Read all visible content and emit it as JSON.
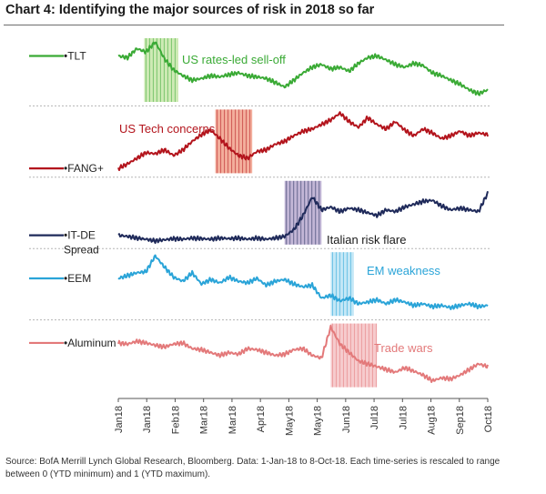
{
  "title": "Chart 4: Identifying the major sources of risk in 2018 so far",
  "source": "Source: BofA Merrill Lynch Global Research, Bloomberg. Data: 1-Jan-18 to 8-Oct-18. Each time-series is rescaled to range between 0 (YTD minimum) and 1 (YTD maximum).",
  "chart_data": {
    "type": "line",
    "title": "Chart 4: Identifying the major sources of risk in 2018 so far",
    "x_tick_labels": [
      "Jan18",
      "Jan18",
      "Feb18",
      "Mar18",
      "Mar18",
      "Apr18",
      "May18",
      "May18",
      "Jun18",
      "Jul18",
      "Jul18",
      "Aug18",
      "Sep18",
      "Oct18"
    ],
    "x_range_weeks": [
      0,
      40
    ],
    "y_range_each_series": [
      0,
      1
    ],
    "grid": "dotted horizontal separators between series",
    "legend": "series labels on left",
    "series": [
      {
        "name": "TLT",
        "color": "#3aaa35",
        "values": [
          0.75,
          0.72,
          0.88,
          0.82,
          1.0,
          0.7,
          0.5,
          0.4,
          0.32,
          0.35,
          0.4,
          0.38,
          0.42,
          0.45,
          0.4,
          0.38,
          0.35,
          0.28,
          0.2,
          0.32,
          0.45,
          0.55,
          0.6,
          0.52,
          0.55,
          0.48,
          0.62,
          0.72,
          0.75,
          0.68,
          0.6,
          0.55,
          0.62,
          0.58,
          0.45,
          0.4,
          0.32,
          0.25,
          0.15,
          0.08,
          0.15
        ]
      },
      {
        "name": "FANG+",
        "color": "#b3141c",
        "values": [
          0.02,
          0.1,
          0.2,
          0.3,
          0.28,
          0.35,
          0.25,
          0.35,
          0.5,
          0.62,
          0.7,
          0.55,
          0.38,
          0.25,
          0.2,
          0.32,
          0.35,
          0.45,
          0.5,
          0.6,
          0.68,
          0.72,
          0.8,
          0.88,
          1.0,
          0.85,
          0.75,
          0.92,
          0.8,
          0.72,
          0.85,
          0.7,
          0.6,
          0.72,
          0.65,
          0.55,
          0.6,
          0.68,
          0.6,
          0.65,
          0.62
        ]
      },
      {
        "name": "IT-DE Spread",
        "color": "#1f2a5a",
        "values": [
          0.1,
          0.08,
          0.05,
          0.03,
          0.0,
          0.02,
          0.04,
          0.03,
          0.05,
          0.04,
          0.03,
          0.05,
          0.04,
          0.05,
          0.03,
          0.05,
          0.03,
          0.05,
          0.08,
          0.2,
          0.45,
          0.78,
          0.55,
          0.6,
          0.52,
          0.58,
          0.55,
          0.5,
          0.45,
          0.55,
          0.52,
          0.6,
          0.65,
          0.7,
          0.72,
          0.62,
          0.55,
          0.58,
          0.55,
          0.52,
          0.85
        ]
      },
      {
        "name": "EEM",
        "color": "#2aa4d8",
        "values": [
          0.6,
          0.65,
          0.7,
          0.72,
          1.0,
          0.8,
          0.62,
          0.55,
          0.7,
          0.5,
          0.58,
          0.52,
          0.62,
          0.55,
          0.52,
          0.6,
          0.48,
          0.55,
          0.58,
          0.5,
          0.45,
          0.48,
          0.25,
          0.3,
          0.2,
          0.25,
          0.15,
          0.18,
          0.22,
          0.15,
          0.22,
          0.18,
          0.12,
          0.15,
          0.1,
          0.12,
          0.08,
          0.12,
          0.15,
          0.1,
          0.12
        ]
      },
      {
        "name": "Aluminum",
        "color": "#e3797a",
        "values": [
          0.72,
          0.7,
          0.75,
          0.72,
          0.68,
          0.65,
          0.7,
          0.72,
          0.62,
          0.6,
          0.55,
          0.5,
          0.55,
          0.52,
          0.62,
          0.6,
          0.55,
          0.5,
          0.52,
          0.6,
          0.62,
          0.5,
          0.45,
          1.0,
          0.7,
          0.55,
          0.4,
          0.35,
          0.3,
          0.25,
          0.2,
          0.28,
          0.22,
          0.15,
          0.05,
          0.1,
          0.08,
          0.15,
          0.25,
          0.35,
          0.3
        ]
      }
    ],
    "annotations": [
      {
        "label": "US rates-led sell-off",
        "series": "TLT",
        "week_range": [
          2.8,
          6.5
        ],
        "color": "#3aaa35",
        "shade": "#c6e6a8"
      },
      {
        "label": "US Tech concerns",
        "series": "FANG+",
        "week_range": [
          10.5,
          14.5
        ],
        "color": "#b3141c",
        "shade": "#f1a08b"
      },
      {
        "label": "Italian risk flare",
        "series": "IT-DE Spread",
        "week_range": [
          18.0,
          22.0
        ],
        "color": "#1f2a5a",
        "shade": "#b7a9cf"
      },
      {
        "label": "EM weakness",
        "series": "EEM",
        "week_range": [
          23.0,
          25.5
        ],
        "color": "#2aa4d8",
        "shade": "#b8e3f5"
      },
      {
        "label": "Trade wars",
        "series": "Aluminum",
        "week_range": [
          23.0,
          28.0
        ],
        "color": "#e3797a",
        "shade": "#f4c2c4"
      }
    ]
  }
}
